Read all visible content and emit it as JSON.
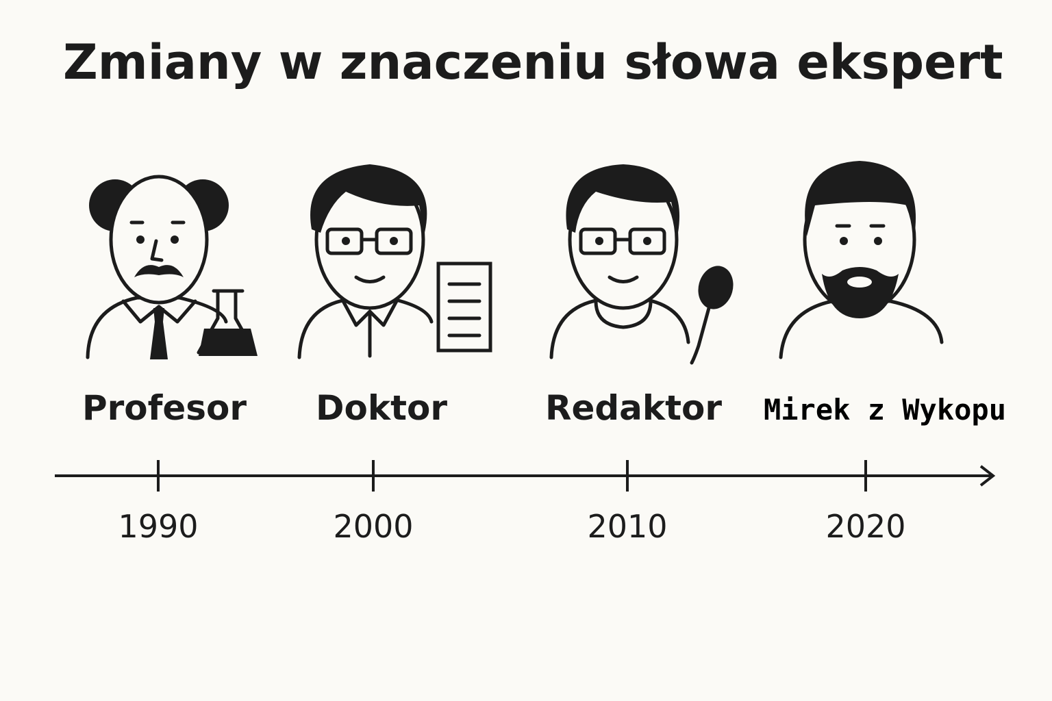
{
  "title": "Zmiany w znaczeniu słowa ekspert",
  "items": [
    {
      "label": "Profesor",
      "year": "1990"
    },
    {
      "label": "Doktor",
      "year": "2000"
    },
    {
      "label": "Redaktor",
      "year": "2010"
    },
    {
      "label": "Mirek z Wykopu",
      "year": "2020"
    }
  ]
}
